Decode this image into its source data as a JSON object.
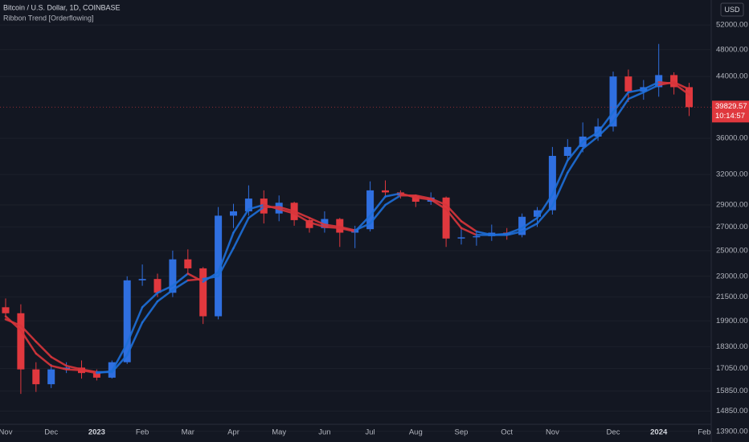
{
  "chart_data": {
    "type": "candlestick",
    "title": "Bitcoin / U.S. Dollar, 1D, COINBASE",
    "subtitle": "Ribbon Trend [Orderflowing]",
    "currency": "USD",
    "countdown": "10:14:57",
    "categories": [
      "Nov",
      null,
      null,
      "Dec",
      null,
      null,
      "2023",
      null,
      null,
      "Feb",
      null,
      null,
      "Mar",
      null,
      null,
      "Apr",
      null,
      null,
      "May",
      null,
      null,
      "Jun",
      null,
      null,
      "Jul",
      null,
      null,
      "Aug",
      null,
      null,
      "Sep",
      null,
      null,
      "Oct",
      null,
      null,
      "Nov",
      null,
      null,
      null,
      "Dec",
      null,
      null,
      "2024",
      null,
      null,
      "Feb"
    ],
    "open": [
      20800,
      20400,
      17000,
      16200,
      17000,
      17100,
      16800,
      16550,
      17400,
      22700,
      22800,
      21800,
      24300,
      23600,
      20200,
      28000,
      28400,
      29600,
      28200,
      29200,
      27600,
      26900,
      27700,
      26500,
      26800,
      30400,
      30200,
      29900,
      29300,
      29700,
      26000,
      26100,
      26200,
      26500,
      26300,
      27900,
      28500,
      34000,
      35000,
      36200,
      37400,
      44000,
      41900,
      42500,
      44200,
      42500,
      null
    ],
    "high": [
      21400,
      21000,
      17400,
      17300,
      17400,
      17500,
      17000,
      17500,
      23000,
      23900,
      23200,
      25000,
      25100,
      23700,
      28800,
      29100,
      30900,
      30400,
      29900,
      29300,
      27700,
      28400,
      27800,
      27100,
      31300,
      31400,
      30400,
      30000,
      30200,
      29800,
      26800,
      26600,
      27200,
      26900,
      28200,
      28800,
      35000,
      35900,
      37900,
      38400,
      44700,
      45000,
      43500,
      48900,
      44600,
      43100,
      null
    ],
    "low": [
      20100,
      15700,
      15800,
      16000,
      16800,
      16500,
      16400,
      16500,
      17300,
      22300,
      21500,
      21500,
      23200,
      19700,
      20000,
      26900,
      28000,
      27300,
      27500,
      27100,
      26500,
      26500,
      25300,
      25200,
      26600,
      29800,
      29600,
      28800,
      29000,
      25300,
      25500,
      25400,
      25800,
      25900,
      26100,
      27000,
      28100,
      33600,
      34400,
      35700,
      36800,
      40500,
      40800,
      41200,
      41500,
      38700,
      null
    ],
    "close": [
      20400,
      17000,
      16200,
      17000,
      17100,
      16800,
      16550,
      17400,
      22700,
      22800,
      21800,
      24300,
      23600,
      20200,
      28000,
      28400,
      29600,
      28200,
      29200,
      27600,
      26900,
      27700,
      26500,
      26800,
      30400,
      30200,
      29900,
      29300,
      29700,
      26000,
      26100,
      26200,
      26500,
      26300,
      27900,
      28500,
      34000,
      35000,
      36200,
      37400,
      44000,
      41900,
      42500,
      44200,
      42500,
      39829.57,
      null
    ],
    "up_color": "#2f6fe0",
    "down_color": "#e0383e",
    "ribbon": {
      "fast": [
        20200,
        19300,
        17900,
        17200,
        17000,
        16950,
        16800,
        16900,
        18500,
        20800,
        21800,
        22300,
        23200,
        22600,
        23300,
        26500,
        28600,
        29000,
        28600,
        28200,
        27400,
        27000,
        26900,
        26600,
        28000,
        29800,
        30100,
        29700,
        29500,
        28600,
        26900,
        26300,
        26300,
        26400,
        26900,
        27800,
        30000,
        33500,
        35600,
        36700,
        39200,
        41800,
        42200,
        43200,
        43000,
        41500,
        null
      ],
      "slow": [
        20000,
        19600,
        18600,
        17700,
        17200,
        17000,
        16850,
        16850,
        17800,
        19800,
        21200,
        22000,
        22700,
        22800,
        23000,
        25200,
        27800,
        28800,
        28800,
        28400,
        27800,
        27200,
        27000,
        26700,
        27300,
        29000,
        29900,
        29900,
        29600,
        29000,
        27500,
        26600,
        26300,
        26300,
        26600,
        27300,
        28900,
        32200,
        34800,
        36200,
        38000,
        40900,
        41800,
        42800,
        43200,
        42200,
        null
      ],
      "up_color": "#1e6fd9",
      "down_color": "#d9353b"
    },
    "log_scale": true,
    "grid": true,
    "ylim": [
      13500,
      56400
    ],
    "yticks": [
      {
        "value": 52000,
        "label": "52000.00"
      },
      {
        "value": 48000,
        "label": "48000.00"
      },
      {
        "value": 44000,
        "label": "44000.00"
      },
      {
        "value": 36000,
        "label": "36000.00"
      },
      {
        "value": 32000,
        "label": "32000.00"
      },
      {
        "value": 29000,
        "label": "29000.00"
      },
      {
        "value": 27000,
        "label": "27000.00"
      },
      {
        "value": 25000,
        "label": "25000.00"
      },
      {
        "value": 23000,
        "label": "23000.00"
      },
      {
        "value": 21500,
        "label": "21500.00"
      },
      {
        "value": 19900,
        "label": "19900.00"
      },
      {
        "value": 18300,
        "label": "18300.00"
      },
      {
        "value": 17050,
        "label": "17050.00"
      },
      {
        "value": 15850,
        "label": "15850.00"
      },
      {
        "value": 14850,
        "label": "14850.00"
      },
      {
        "value": 13900,
        "label": "13900.00"
      }
    ]
  }
}
